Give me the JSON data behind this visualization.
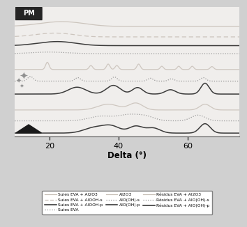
{
  "x_min": 10,
  "x_max": 75,
  "xlabel": "Delta (°)",
  "bg_color": "#d0d0d0",
  "plot_bg": "#f0eeec",
  "lc": "#c8c0b8",
  "mc": "#909090",
  "dc": "#282828",
  "xticks": [
    20,
    40,
    60
  ],
  "legend_entries_col1": [
    "Suies EVA + Al2O3",
    "Suies EVA + AlOOH-s",
    "Suies EVA + AlOOH-p",
    "Suies EVA"
  ],
  "legend_entries_col2": [
    "Al2O3",
    "AlO(OH)-s",
    "AlO(OH)-p"
  ],
  "legend_entries_col3": [
    "Résidus EVA + Al2O3",
    "Résidus EVA + AlO(OH)-s",
    "Résidus EVA + AlO(OH)-p"
  ]
}
